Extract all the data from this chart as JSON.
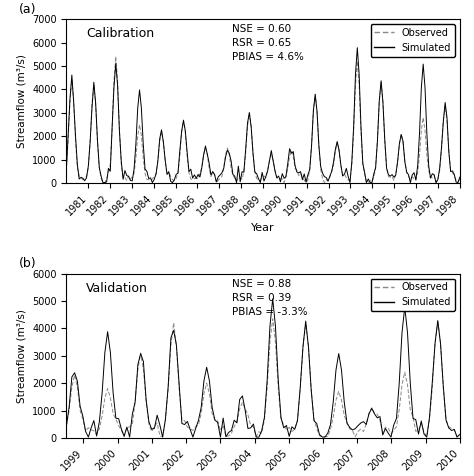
{
  "panel_a": {
    "label": "(a)",
    "title": "Calibration",
    "stats": "NSE = 0.60\nRSR = 0.65\nPBIAS = 4.6%",
    "xlabel": "Year",
    "ylabel": "Streamflow (m³/s)",
    "ylim": [
      0,
      7000
    ],
    "yticks": [
      0,
      1000,
      2000,
      3000,
      4000,
      5000,
      6000,
      7000
    ],
    "xlim": [
      1980,
      1998
    ],
    "xtick_years": [
      1981,
      1982,
      1983,
      1984,
      1985,
      1986,
      1987,
      1988,
      1989,
      1990,
      1991,
      1992,
      1993,
      1994,
      1995,
      1996,
      1997,
      1998
    ]
  },
  "panel_b": {
    "label": "(b)",
    "title": "Validation",
    "stats": "NSE = 0.88\nRSR = 0.39\nPBIAS = -3.3%",
    "xlabel": "Year",
    "ylabel": "Streamflow (m³/s)",
    "ylim": [
      0,
      6000
    ],
    "yticks": [
      0,
      1000,
      2000,
      3000,
      4000,
      5000,
      6000
    ],
    "xlim": [
      1998.5,
      2010
    ],
    "xtick_years": [
      1999,
      2000,
      2001,
      2002,
      2003,
      2004,
      2005,
      2006,
      2007,
      2008,
      2009,
      2010
    ]
  },
  "legend_observed_label": "Observed",
  "legend_simulated_label": "Simulated",
  "obs_color": "#888888",
  "sim_color": "#000000",
  "background_color": "#ffffff"
}
